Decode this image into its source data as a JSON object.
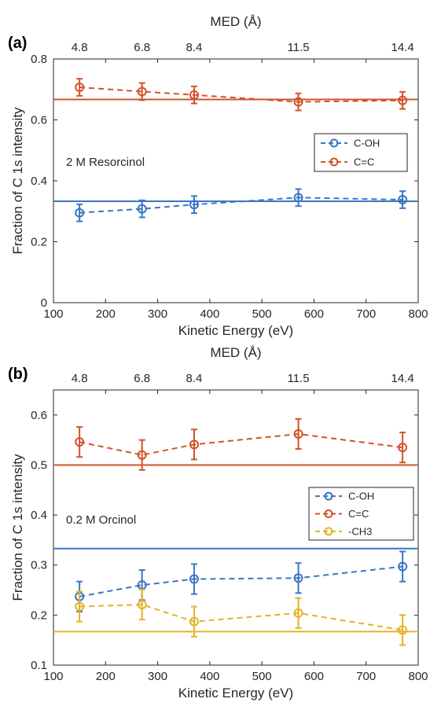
{
  "chart_data": [
    {
      "type": "line",
      "panel_label": "(a)",
      "xlabel": "Kinetic Energy (eV)",
      "ylabel": "Fraction of C 1s intensity",
      "top_xlabel": "MED (Å)",
      "xlim": [
        100,
        800
      ],
      "ylim": [
        0,
        0.8
      ],
      "x_ticks": [
        100,
        200,
        300,
        400,
        500,
        600,
        700,
        800
      ],
      "x_tick_labels": [
        "100",
        "200",
        "300",
        "400",
        "500",
        "600",
        "700",
        "800"
      ],
      "y_ticks": [
        0,
        0.2,
        0.4,
        0.6,
        0.8
      ],
      "y_tick_labels": [
        "0",
        "0.2",
        "0.4",
        "0.6",
        "0.8"
      ],
      "top_ticks": [
        150,
        270,
        370,
        570,
        770
      ],
      "top_tick_labels": [
        "4.8",
        "6.8",
        "8.4",
        "11.5",
        "14.4"
      ],
      "annotation": "2 M Resorcinol",
      "grid": false,
      "legend_position": "right",
      "x": [
        150,
        270,
        370,
        570,
        770
      ],
      "series": [
        {
          "name": "C-OH",
          "color": "#3a76c4",
          "y": [
            0.295,
            0.308,
            0.322,
            0.345,
            0.338
          ],
          "err": [
            0.028,
            0.028,
            0.028,
            0.028,
            0.028
          ]
        },
        {
          "name": "C=C",
          "color": "#d1532a",
          "y": [
            0.707,
            0.693,
            0.682,
            0.659,
            0.664
          ],
          "err": [
            0.028,
            0.028,
            0.028,
            0.028,
            0.028
          ]
        }
      ],
      "reference_lines": [
        {
          "y": 0.333,
          "color": "#3a76c4"
        },
        {
          "y": 0.667,
          "color": "#d1532a"
        }
      ]
    },
    {
      "type": "line",
      "panel_label": "(b)",
      "xlabel": "Kinetic Energy (eV)",
      "ylabel": "Fraction of C 1s intensity",
      "top_xlabel": "MED (Å)",
      "xlim": [
        100,
        800
      ],
      "ylim": [
        0.1,
        0.65
      ],
      "x_ticks": [
        100,
        200,
        300,
        400,
        500,
        600,
        700,
        800
      ],
      "x_tick_labels": [
        "100",
        "200",
        "300",
        "400",
        "500",
        "600",
        "700",
        "800"
      ],
      "y_ticks": [
        0.1,
        0.2,
        0.3,
        0.4,
        0.5,
        0.6
      ],
      "y_tick_labels": [
        "0.1",
        "0.2",
        "0.3",
        "0.4",
        "0.5",
        "0.6"
      ],
      "top_ticks": [
        150,
        270,
        370,
        570,
        770
      ],
      "top_tick_labels": [
        "4.8",
        "6.8",
        "8.4",
        "11.5",
        "14.4"
      ],
      "annotation": "0.2 M Orcinol",
      "grid": false,
      "legend_position": "right",
      "x": [
        150,
        270,
        370,
        570,
        770
      ],
      "series": [
        {
          "name": "C-OH",
          "color": "#3a76c4",
          "y": [
            0.237,
            0.26,
            0.272,
            0.274,
            0.297
          ],
          "err": [
            0.03,
            0.03,
            0.03,
            0.03,
            0.03
          ]
        },
        {
          "name": "C=C",
          "color": "#d1532a",
          "y": [
            0.546,
            0.52,
            0.541,
            0.562,
            0.535
          ],
          "err": [
            0.03,
            0.03,
            0.03,
            0.03,
            0.03
          ]
        },
        {
          "name": "-CH3",
          "color": "#e4b325",
          "y": [
            0.217,
            0.221,
            0.187,
            0.204,
            0.17
          ],
          "err": [
            0.03,
            0.03,
            0.03,
            0.03,
            0.03
          ]
        }
      ],
      "reference_lines": [
        {
          "y": 0.333,
          "color": "#3a76c4"
        },
        {
          "y": 0.5,
          "color": "#d1532a"
        },
        {
          "y": 0.167,
          "color": "#e4b325"
        }
      ]
    }
  ]
}
